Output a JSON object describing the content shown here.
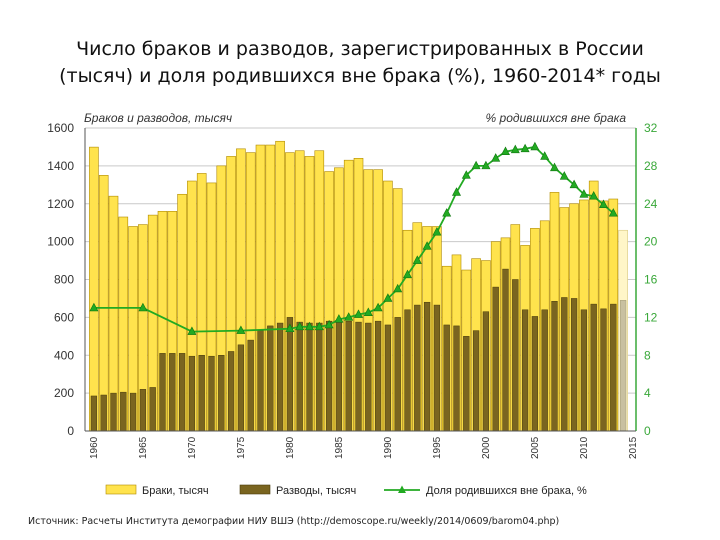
{
  "title_line1": "Число браков и разводов, зарегистрированных в России",
  "title_line2": "(тысяч) и доля родившихся вне брака (%), 1960-2014* годы",
  "source": "Источник: Расчеты Института демографии НИУ ВШЭ (http://demoscope.ru/weekly/2014/0609/barom04.php)",
  "colors": {
    "marriages_fill": "#ffe34d",
    "marriages_stroke": "#b08a00",
    "divorces_fill": "#7a6520",
    "divorces_stroke": "#4a3c0a",
    "births_line": "#22aa22",
    "right_axis": "#3aa83a"
  },
  "chart_data": {
    "type": "bar",
    "title": "Число браков и разводов, зарегистрированных в России (тысяч) и доля родившихся вне брака (%), 1960-2014* годы",
    "left_axis_label": "Браков и разводов, тысяч",
    "right_axis_label": "% родившихся вне брака",
    "ylim_left": [
      0,
      1600
    ],
    "ylim_right": [
      0,
      32
    ],
    "yticks_left": [
      0,
      200,
      400,
      600,
      800,
      1000,
      1200,
      1400,
      1600
    ],
    "yticks_right": [
      0,
      4,
      8,
      12,
      16,
      20,
      24,
      28,
      32
    ],
    "years": [
      1960,
      1961,
      1962,
      1963,
      1964,
      1965,
      1966,
      1967,
      1968,
      1969,
      1970,
      1971,
      1972,
      1973,
      1974,
      1975,
      1976,
      1977,
      1978,
      1979,
      1980,
      1981,
      1982,
      1983,
      1984,
      1985,
      1986,
      1987,
      1988,
      1989,
      1990,
      1991,
      1992,
      1993,
      1994,
      1995,
      1996,
      1997,
      1998,
      1999,
      2000,
      2001,
      2002,
      2003,
      2004,
      2005,
      2006,
      2007,
      2008,
      2009,
      2010,
      2011,
      2012,
      2013,
      2014
    ],
    "xtick_labels": [
      "1960",
      "1965",
      "1970",
      "1975",
      "1980",
      "1985",
      "1990",
      "1995",
      "2000",
      "2005",
      "2010",
      "2015"
    ],
    "series": [
      {
        "name": "Браки, тысяч",
        "type": "bar",
        "values": [
          1499,
          1350,
          1240,
          1130,
          1080,
          1090,
          1140,
          1160,
          1160,
          1250,
          1320,
          1360,
          1310,
          1400,
          1450,
          1490,
          1470,
          1510,
          1510,
          1530,
          1470,
          1480,
          1450,
          1480,
          1370,
          1390,
          1430,
          1440,
          1380,
          1380,
          1320,
          1280,
          1060,
          1100,
          1080,
          1080,
          870,
          930,
          850,
          910,
          900,
          1000,
          1020,
          1090,
          980,
          1070,
          1110,
          1260,
          1180,
          1200,
          1220,
          1320,
          1215,
          1225,
          1060
        ],
        "note": "2014 — предварительные данные (светлая полоса)"
      },
      {
        "name": "Разводы, тысяч",
        "type": "bar",
        "values": [
          185,
          190,
          200,
          205,
          200,
          220,
          230,
          410,
          410,
          410,
          395,
          400,
          395,
          400,
          420,
          455,
          480,
          530,
          555,
          570,
          600,
          575,
          570,
          570,
          580,
          580,
          580,
          575,
          570,
          580,
          560,
          600,
          640,
          665,
          680,
          665,
          560,
          555,
          500,
          530,
          630,
          760,
          855,
          800,
          640,
          605,
          640,
          685,
          705,
          700,
          640,
          670,
          645,
          670,
          690
        ],
        "note": "2014 — предварительные данные (светлая полоса)"
      },
      {
        "name": "Доля родившихся вне брака, %",
        "type": "line",
        "axis": "right",
        "points": [
          [
            1960,
            13
          ],
          [
            1965,
            13
          ],
          [
            1970,
            10.5
          ],
          [
            1975,
            10.6
          ],
          [
            1980,
            10.8
          ],
          [
            1981,
            11
          ],
          [
            1982,
            11
          ],
          [
            1983,
            11
          ],
          [
            1984,
            11.2
          ],
          [
            1985,
            11.8
          ],
          [
            1986,
            12
          ],
          [
            1987,
            12.3
          ],
          [
            1988,
            12.5
          ],
          [
            1989,
            13
          ],
          [
            1990,
            14
          ],
          [
            1991,
            15
          ],
          [
            1992,
            16.5
          ],
          [
            1993,
            18
          ],
          [
            1994,
            19.5
          ],
          [
            1995,
            21
          ],
          [
            1996,
            23
          ],
          [
            1997,
            25.2
          ],
          [
            1998,
            27
          ],
          [
            1999,
            28
          ],
          [
            2000,
            28
          ],
          [
            2001,
            28.8
          ],
          [
            2002,
            29.5
          ],
          [
            2003,
            29.7
          ],
          [
            2004,
            29.8
          ],
          [
            2005,
            30
          ],
          [
            2006,
            29
          ],
          [
            2007,
            27.8
          ],
          [
            2008,
            26.9
          ],
          [
            2009,
            26
          ],
          [
            2010,
            25
          ],
          [
            2011,
            24.8
          ],
          [
            2012,
            23.9
          ],
          [
            2013,
            23
          ]
        ]
      }
    ],
    "legend": [
      "Браки, тысяч",
      "Разводы, тысяч",
      "Доля родившихся вне брака, %"
    ],
    "legend_placement": "bottom"
  }
}
